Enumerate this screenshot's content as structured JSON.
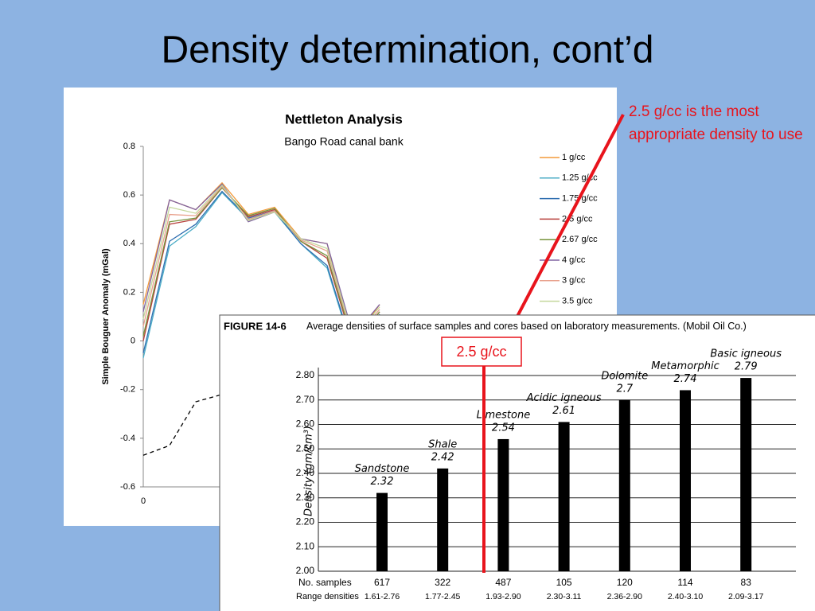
{
  "slide": {
    "title": "Density determination, cont’d",
    "note": "2.5 g/cc is the most appropriate density to use",
    "marker_label": "2.5 g/cc"
  },
  "chart_data": [
    {
      "type": "line",
      "title": "Nettleton Analysis",
      "subtitle": "Bango Road canal bank",
      "y_label": "Simple Bouguer Anomaly (mGal)",
      "x": [
        0,
        1,
        2,
        3,
        4,
        5,
        6,
        7,
        8,
        9
      ],
      "xlim": [
        0,
        18
      ],
      "xticks": [
        0
      ],
      "ylim": [
        -0.6,
        0.8
      ],
      "yticks": [
        0.8,
        0.6,
        0.4,
        0.2,
        0,
        -0.2,
        -0.4,
        -0.6
      ],
      "series": [
        {
          "name": "1 g/cc",
          "color": "#f39a3a",
          "values": [
            0.15,
            0.58,
            0.54,
            0.65,
            0.52,
            0.55,
            0.42,
            0.4,
            0.0,
            0.15
          ]
        },
        {
          "name": "1.25 g/cc",
          "color": "#4bacc6",
          "values": [
            -0.07,
            0.39,
            0.47,
            0.61,
            0.5,
            0.53,
            0.4,
            0.3,
            -0.05,
            0.1
          ]
        },
        {
          "name": "1.75 g/cc",
          "color": "#2e6eb0",
          "values": [
            -0.05,
            0.41,
            0.48,
            0.615,
            0.505,
            0.535,
            0.4,
            0.31,
            -0.04,
            0.11
          ]
        },
        {
          "name": "2.5 g/cc",
          "color": "#b8403d",
          "values": [
            0.0,
            0.48,
            0.5,
            0.63,
            0.51,
            0.54,
            0.41,
            0.34,
            -0.02,
            0.12
          ]
        },
        {
          "name": "2.67 g/cc",
          "color": "#77933c",
          "values": [
            0.02,
            0.49,
            0.505,
            0.63,
            0.515,
            0.545,
            0.41,
            0.35,
            -0.01,
            0.12
          ]
        },
        {
          "name": "4 g/cc",
          "color": "#8064a2",
          "values": [
            0.12,
            0.58,
            0.54,
            0.645,
            0.49,
            0.53,
            0.42,
            0.4,
            0.02,
            0.15
          ]
        },
        {
          "name": "3 g/cc",
          "color": "#e8a08c",
          "values": [
            0.06,
            0.52,
            0.515,
            0.635,
            0.5,
            0.535,
            0.415,
            0.37,
            0.0,
            0.13
          ]
        },
        {
          "name": "3.5 g/cc",
          "color": "#c4d79b",
          "values": [
            0.09,
            0.55,
            0.525,
            0.64,
            0.495,
            0.53,
            0.42,
            0.38,
            0.01,
            0.14
          ]
        },
        {
          "color": "#000000",
          "dashed": true,
          "values": [
            -0.47,
            -0.43,
            -0.25,
            -0.22,
            null,
            null,
            null,
            null,
            null,
            null
          ]
        }
      ]
    },
    {
      "type": "bar",
      "figure": "FIGURE 14-6",
      "title": "Average densities of surface samples and cores based on laboratory measurements. (Mobil Oil Co.)",
      "y_label": "Density (gm/cm³)",
      "categories": [
        "Sandstone",
        "Shale",
        "Limestone",
        "Acidic igneous",
        "Dolomite",
        "Metamorphic",
        "Basic igneous"
      ],
      "values": [
        2.32,
        2.42,
        2.54,
        2.61,
        2.7,
        2.74,
        2.79
      ],
      "color": "#000000",
      "ylim": [
        2.0,
        2.8
      ],
      "yticks": [
        {
          "value": 2.8,
          "label": "2.80"
        },
        {
          "value": 2.7,
          "label": "2.70"
        },
        {
          "value": 2.6,
          "label": "2.60"
        },
        {
          "value": 2.5,
          "label": "2.50"
        },
        {
          "value": 2.4,
          "label": "2.40"
        },
        {
          "value": 2.3,
          "label": "2.30"
        },
        {
          "value": 2.2,
          "label": "2.20"
        },
        {
          "value": 2.1,
          "label": "2.10"
        },
        {
          "value": 2.0,
          "label": "2.00"
        }
      ],
      "grid": true,
      "samples_label": "No. samples",
      "samples": [
        617,
        322,
        487,
        105,
        120,
        114,
        83
      ],
      "range_label": "Range densities",
      "ranges": [
        "1.61-2.76",
        "1.77-2.45",
        "1.93-2.90",
        "2.30-3.11",
        "2.36-2.90",
        "2.40-3.10",
        "2.09-3.17"
      ]
    }
  ]
}
